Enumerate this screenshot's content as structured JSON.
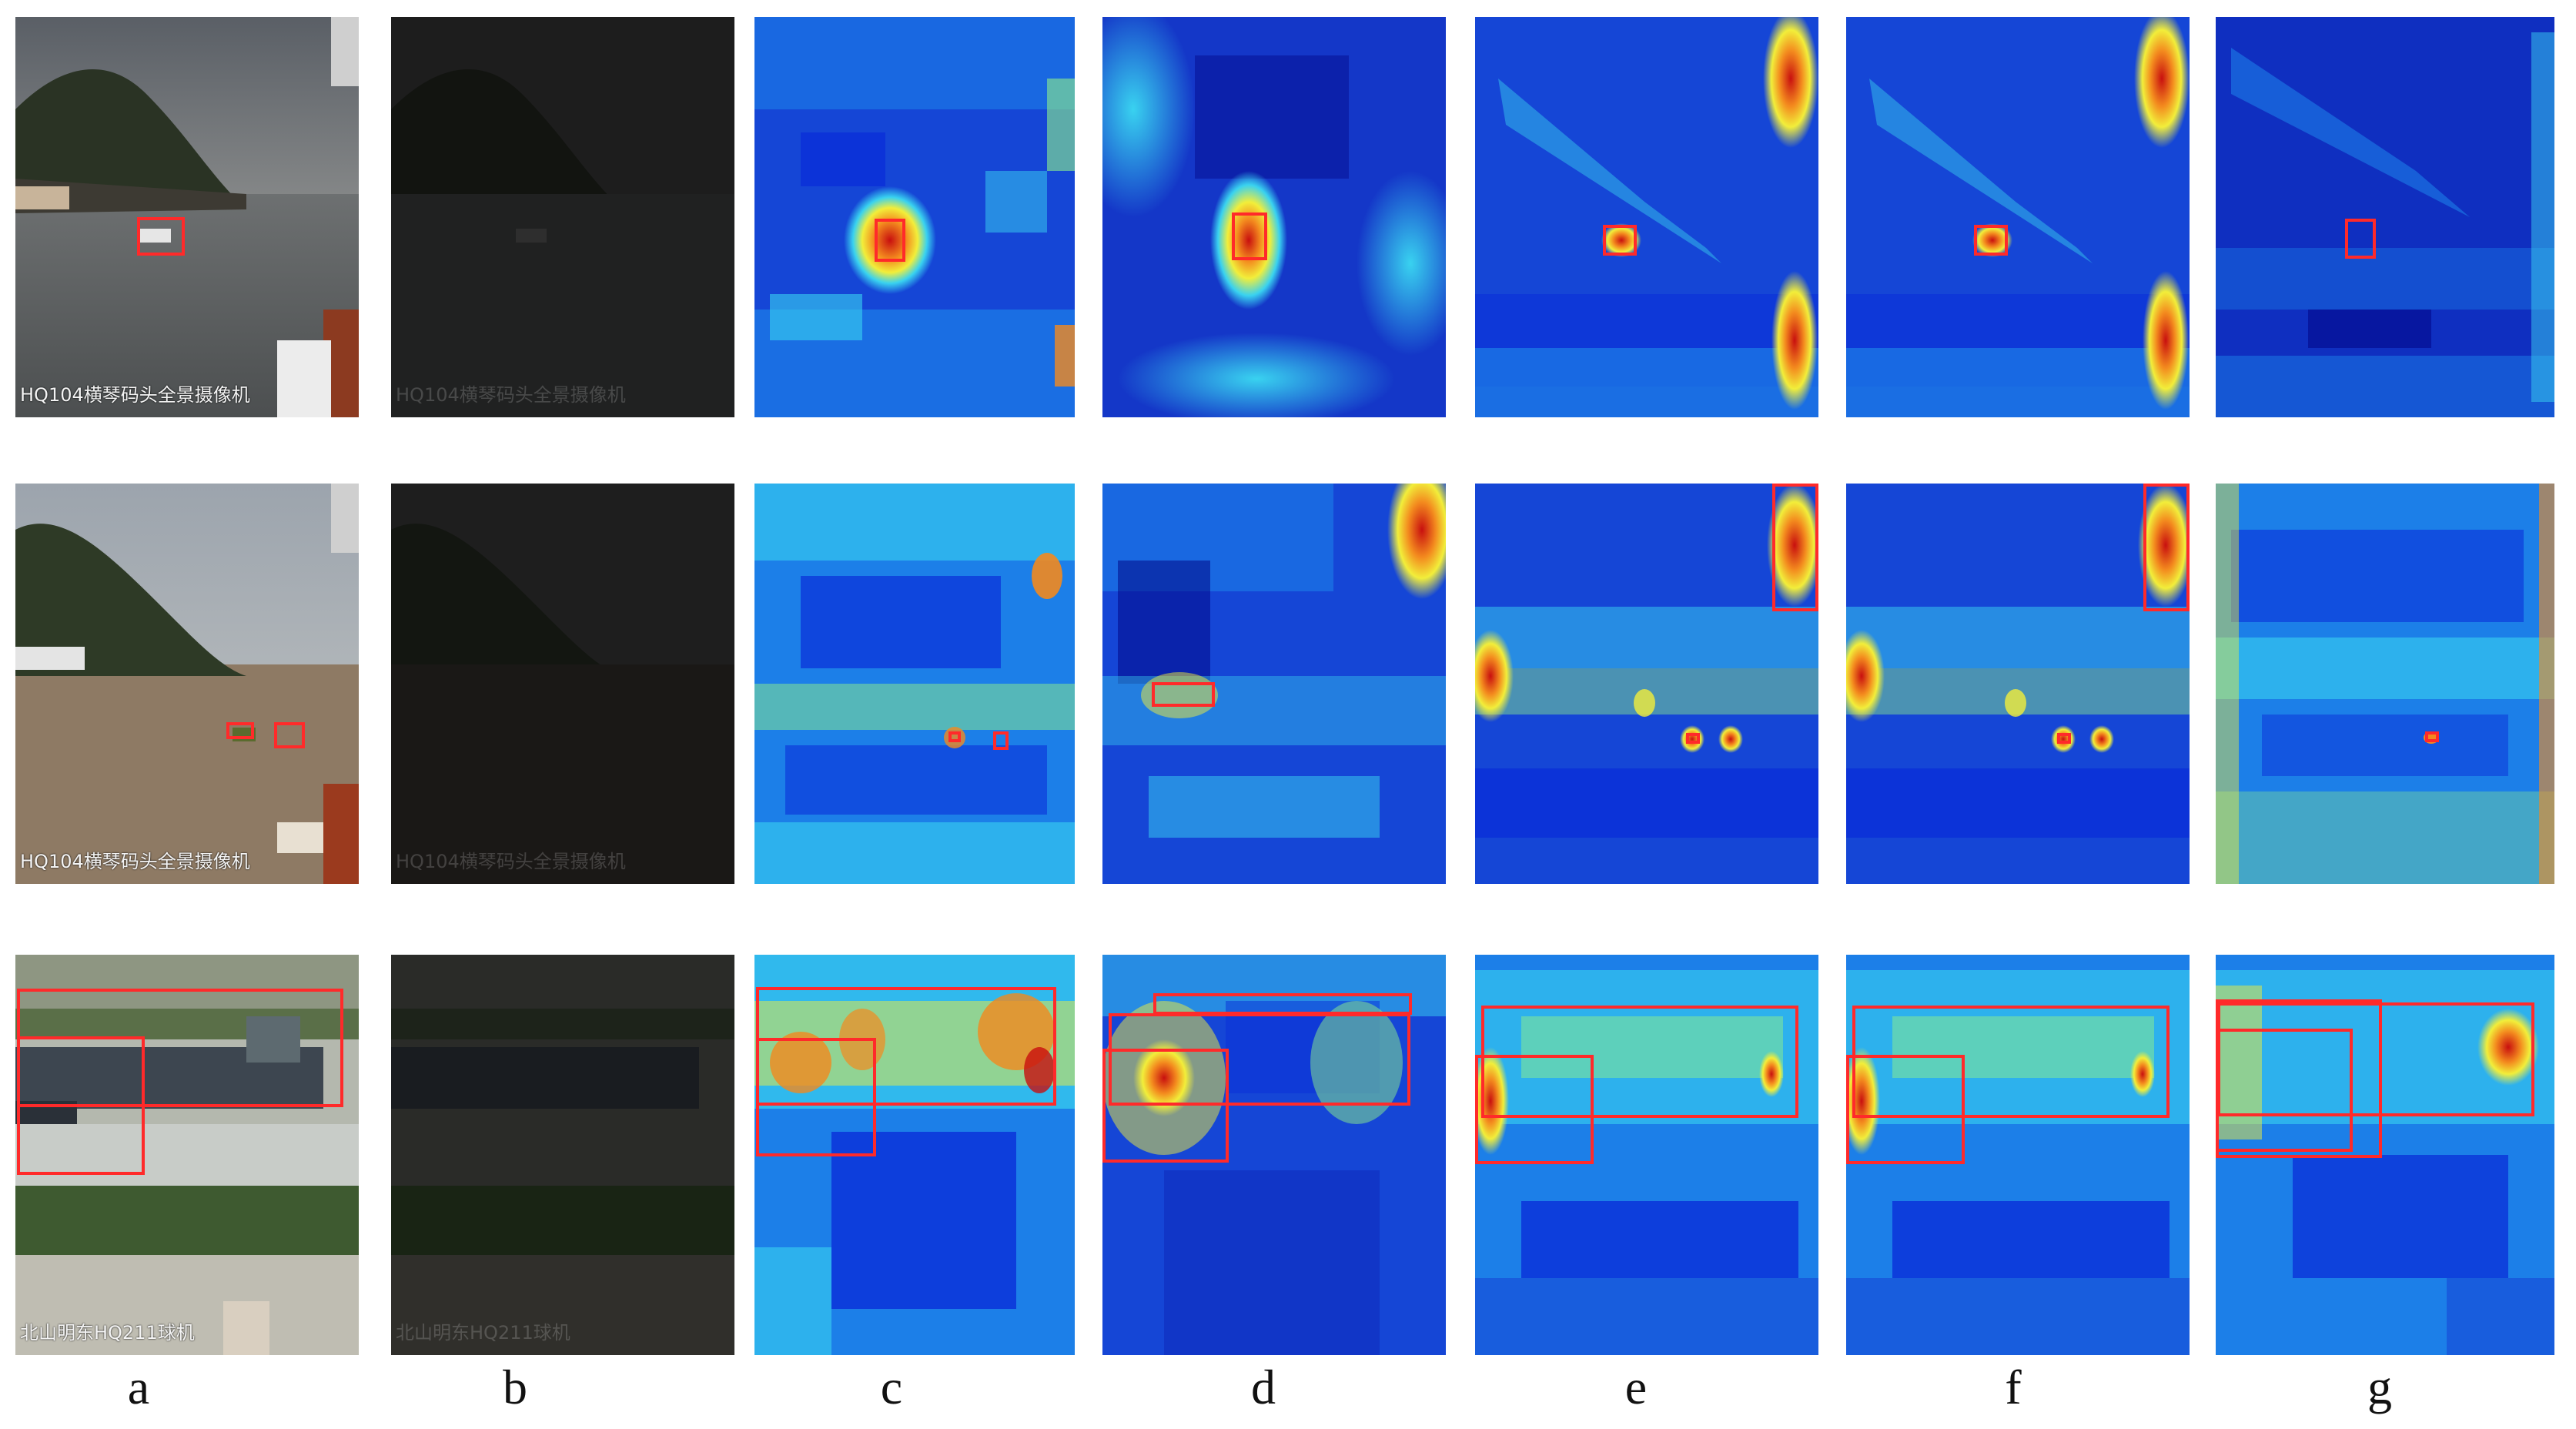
{
  "figure": {
    "column_labels": [
      "a",
      "b",
      "c",
      "d",
      "e",
      "f",
      "g"
    ],
    "overlay_texts": [
      "HQ104横琴码头全景摄像机",
      "HQ104横琴码头全景摄像机",
      "北山明东HQ211球机"
    ],
    "bbox_color": "#ff2a2a",
    "heatmap_palette": [
      "#00007f",
      "#0a2ed8",
      "#1c7fe8",
      "#39d2f0",
      "#8ef08a",
      "#f2ee3a",
      "#f38a1e",
      "#c80f0f"
    ]
  }
}
